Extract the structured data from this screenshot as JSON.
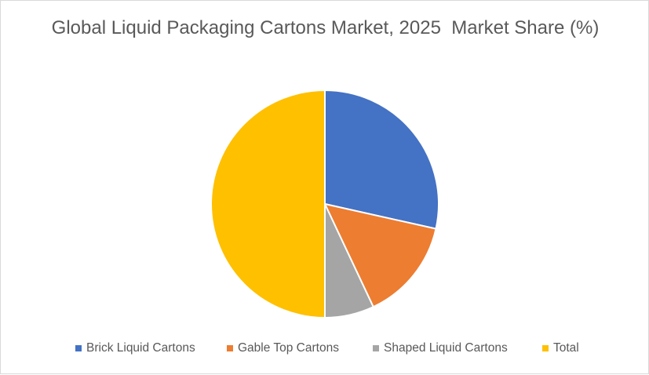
{
  "chart_data": {
    "type": "pie",
    "title": "Global Liquid Packaging Cartons Market, 2025  Market Share (%)",
    "categories": [
      "Brick Liquid Cartons",
      "Gable Top Cartons",
      "Shaped Liquid Cartons",
      "Total"
    ],
    "values": [
      28.5,
      14.5,
      7.0,
      50.0
    ],
    "colors": [
      "#4472C4",
      "#ED7D31",
      "#A5A5A5",
      "#FFC000"
    ],
    "legend_position": "bottom",
    "start_angle_deg": 0,
    "direction": "clockwise"
  }
}
